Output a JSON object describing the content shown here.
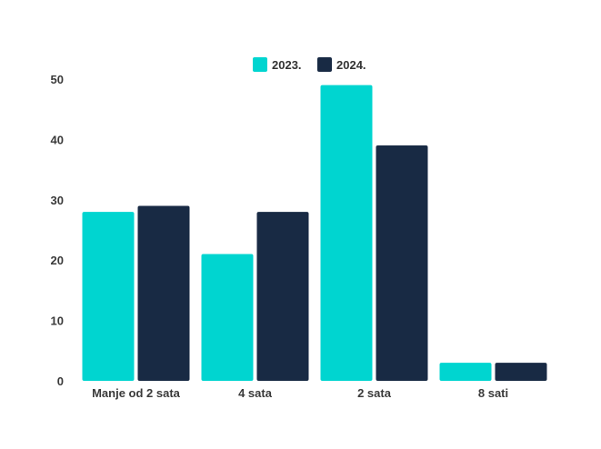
{
  "chart_data": {
    "type": "bar",
    "categories": [
      "Manje od 2 sata",
      "4 sata",
      "2 sata",
      "8 sati"
    ],
    "series": [
      {
        "name": "2023.",
        "color": "#00d5d0",
        "values": [
          28,
          21,
          49,
          3
        ]
      },
      {
        "name": "2024.",
        "color": "#182a44",
        "values": [
          29,
          28,
          39,
          3
        ]
      }
    ],
    "ylim": [
      0,
      50
    ],
    "yticks": [
      0,
      10,
      20,
      30,
      40,
      50
    ],
    "grid": false,
    "legend_position": "top-center"
  }
}
